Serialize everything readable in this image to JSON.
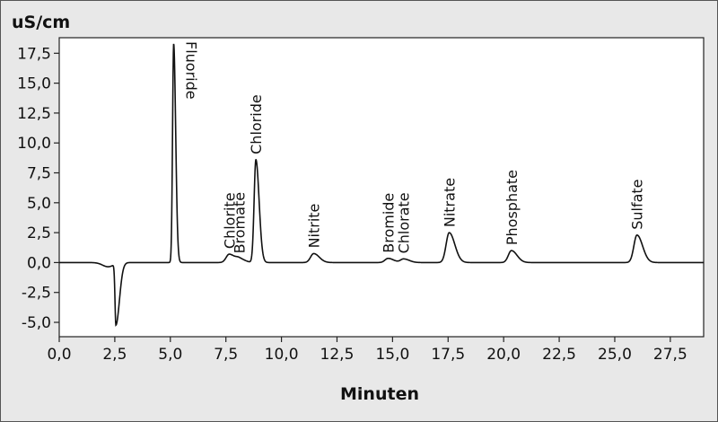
{
  "chart_data": {
    "type": "line",
    "title": "",
    "ylabel": "uS/cm",
    "xlabel": "Minuten",
    "xlim": [
      0,
      29
    ],
    "ylim": [
      -6.2,
      18.8
    ],
    "grid": false,
    "x_ticks": [
      {
        "value": 0,
        "label": "0,0"
      },
      {
        "value": 2.5,
        "label": "2,5"
      },
      {
        "value": 5,
        "label": "5,0"
      },
      {
        "value": 7.5,
        "label": "7,5"
      },
      {
        "value": 10,
        "label": "10,0"
      },
      {
        "value": 12.5,
        "label": "12,5"
      },
      {
        "value": 15,
        "label": "15,0"
      },
      {
        "value": 17.5,
        "label": "17,5"
      },
      {
        "value": 20,
        "label": "20,0"
      },
      {
        "value": 22.5,
        "label": "22,5"
      },
      {
        "value": 25,
        "label": "25,0"
      },
      {
        "value": 27.5,
        "label": "27,5"
      }
    ],
    "y_ticks": [
      {
        "value": 17.5,
        "label": "17,5"
      },
      {
        "value": 15,
        "label": "15,0"
      },
      {
        "value": 12.5,
        "label": "12,5"
      },
      {
        "value": 10,
        "label": "10,0"
      },
      {
        "value": 7.5,
        "label": "7,5"
      },
      {
        "value": 5,
        "label": "5,0"
      },
      {
        "value": 2.5,
        "label": "2,5"
      },
      {
        "value": 0,
        "label": "0,0"
      },
      {
        "value": -2.5,
        "label": "-2,5"
      },
      {
        "value": -5,
        "label": "-5,0"
      }
    ],
    "baseline_dip": {
      "time": 2.55,
      "value": -5.1
    },
    "peaks": [
      {
        "name": "Fluoride",
        "time": 5.15,
        "height": 18.3
      },
      {
        "name": "Chlorite",
        "time": 7.65,
        "height": 0.7
      },
      {
        "name": "Bromate",
        "time": 8.1,
        "height": 0.3
      },
      {
        "name": "Chloride",
        "time": 8.85,
        "height": 8.6
      },
      {
        "name": "Nitrite",
        "time": 11.45,
        "height": 0.75
      },
      {
        "name": "Bromide",
        "time": 14.8,
        "height": 0.35
      },
      {
        "name": "Chlorate",
        "time": 15.5,
        "height": 0.3
      },
      {
        "name": "Nitrate",
        "time": 17.55,
        "height": 2.5
      },
      {
        "name": "Phosphate",
        "time": 20.35,
        "height": 1.0
      },
      {
        "name": "Sulfate",
        "time": 26.0,
        "height": 2.3
      }
    ]
  }
}
